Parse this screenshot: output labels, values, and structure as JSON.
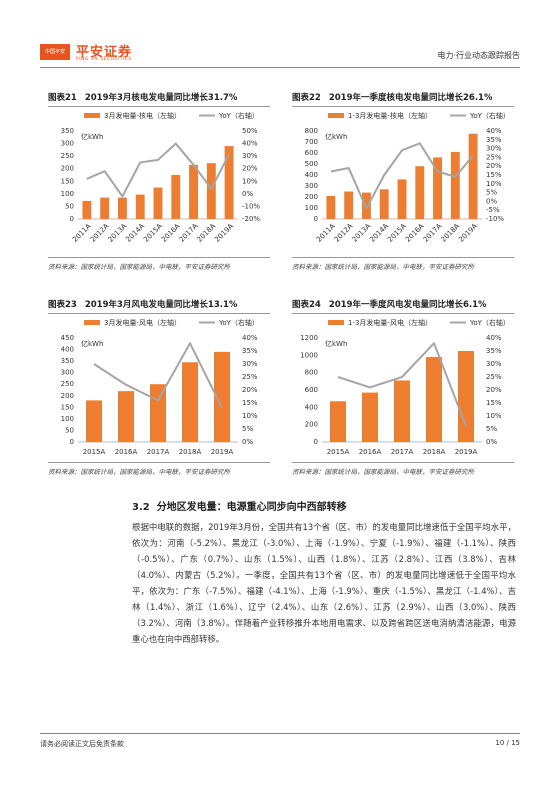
{
  "header": {
    "logo": "中国平安",
    "company": "平安证券",
    "company_en": "PING AN SECURITIES",
    "report_type": "电力·行业动态跟踪报告"
  },
  "chart_data": [
    {
      "type": "combo",
      "figure_label": "图表21",
      "title": "2019年3月核电发电量同比增长31.7%",
      "unit_label": "亿kWh",
      "categories": [
        "2011A",
        "2012A",
        "2013A",
        "2014A",
        "2015A",
        "2016A",
        "2017A",
        "2018A",
        "2019A"
      ],
      "series": [
        {
          "name": "3月发电量-核电（左轴）",
          "kind": "bar",
          "color": "#ed7d31",
          "values": [
            72,
            85,
            85,
            97,
            125,
            175,
            215,
            222,
            290
          ]
        },
        {
          "name": "YoY（右轴）",
          "kind": "line",
          "axis": "y2",
          "color": "#a5a5a5",
          "values": [
            12,
            18,
            -2,
            25,
            27,
            40,
            23,
            4,
            31.7
          ]
        }
      ],
      "ylim": [
        0,
        350
      ],
      "yticks": [
        0,
        50,
        100,
        150,
        200,
        250,
        300,
        350
      ],
      "y2lim": [
        -20,
        50
      ],
      "y2ticks": [
        {
          "value": -20,
          "label": "-20%"
        },
        {
          "value": -10,
          "label": "-10%"
        },
        {
          "value": 0,
          "label": "0%"
        },
        {
          "value": 10,
          "label": "10%"
        },
        {
          "value": 20,
          "label": "20%"
        },
        {
          "value": 30,
          "label": "30%"
        },
        {
          "value": 40,
          "label": "40%"
        },
        {
          "value": 50,
          "label": "50%"
        }
      ],
      "source": "资料来源：国家统计局，国家能源局，中电联，平安证券研究所"
    },
    {
      "type": "combo",
      "figure_label": "图表22",
      "title": "2019年一季度核电发电量同比增长26.1%",
      "unit_label": "亿kWh",
      "categories": [
        "2011A",
        "2012A",
        "2013A",
        "2014A",
        "2015A",
        "2016A",
        "2017A",
        "2018A",
        "2019A"
      ],
      "series": [
        {
          "name": "1-3月发电量-核电（左轴）",
          "kind": "bar",
          "color": "#ed7d31",
          "values": [
            210,
            250,
            240,
            270,
            360,
            480,
            560,
            610,
            775
          ]
        },
        {
          "name": "YoY（右轴）",
          "kind": "line",
          "axis": "y2",
          "color": "#a5a5a5",
          "values": [
            17,
            19,
            -4,
            15,
            29,
            33,
            17,
            14,
            26.1
          ]
        }
      ],
      "ylim": [
        0,
        800
      ],
      "yticks": [
        0,
        100,
        200,
        300,
        400,
        500,
        600,
        700,
        800
      ],
      "y2lim": [
        -10,
        40
      ],
      "y2ticks": [
        {
          "value": -10,
          "label": "-10%"
        },
        {
          "value": -5,
          "label": "-5%"
        },
        {
          "value": 0,
          "label": "0%"
        },
        {
          "value": 5,
          "label": "5%"
        },
        {
          "value": 10,
          "label": "10%"
        },
        {
          "value": 15,
          "label": "15%"
        },
        {
          "value": 20,
          "label": "20%"
        },
        {
          "value": 25,
          "label": "25%"
        },
        {
          "value": 30,
          "label": "30%"
        },
        {
          "value": 35,
          "label": "35%"
        },
        {
          "value": 40,
          "label": "40%"
        }
      ],
      "source": "资料来源：国家统计局，国家能源局，中电联，平安证券研究所"
    },
    {
      "type": "combo",
      "figure_label": "图表23",
      "title": "2019年3月风电发电量同比增长13.1%",
      "unit_label": "亿kWh",
      "categories": [
        "2015A",
        "2016A",
        "2017A",
        "2018A",
        "2019A"
      ],
      "series": [
        {
          "name": "3月发电量-风电（左轴）",
          "kind": "bar",
          "color": "#ed7d31",
          "values": [
            180,
            220,
            250,
            345,
            390
          ]
        },
        {
          "name": "YoY（右轴）",
          "kind": "line",
          "axis": "y2",
          "color": "#a5a5a5",
          "values": [
            30,
            22,
            16,
            38,
            13.1
          ]
        }
      ],
      "ylim": [
        0,
        450
      ],
      "yticks": [
        0,
        50,
        100,
        150,
        200,
        250,
        300,
        350,
        400,
        450
      ],
      "y2lim": [
        0,
        40
      ],
      "y2ticks": [
        {
          "value": 0,
          "label": "0%"
        },
        {
          "value": 5,
          "label": "5%"
        },
        {
          "value": 10,
          "label": "10%"
        },
        {
          "value": 15,
          "label": "15%"
        },
        {
          "value": 20,
          "label": "20%"
        },
        {
          "value": 25,
          "label": "25%"
        },
        {
          "value": 30,
          "label": "30%"
        },
        {
          "value": 35,
          "label": "35%"
        },
        {
          "value": 40,
          "label": "40%"
        }
      ],
      "source": "资料来源：国家统计局，国家能源局，中电联，平安证券研究所"
    },
    {
      "type": "combo",
      "figure_label": "图表24",
      "title": "2019年一季度风电发电量同比增长6.1%",
      "unit_label": "亿kWh",
      "categories": [
        "2015A",
        "2016A",
        "2017A",
        "2018A",
        "2019A"
      ],
      "series": [
        {
          "name": "1-3月发电量-风电（左轴）",
          "kind": "bar",
          "color": "#ed7d31",
          "values": [
            470,
            570,
            710,
            980,
            1050
          ]
        },
        {
          "name": "YoY（右轴）",
          "kind": "line",
          "axis": "y2",
          "color": "#a5a5a5",
          "values": [
            25,
            21,
            25,
            38,
            6.1
          ]
        }
      ],
      "ylim": [
        0,
        1200
      ],
      "yticks": [
        0,
        200,
        400,
        600,
        800,
        1000,
        1200
      ],
      "y2lim": [
        0,
        40
      ],
      "y2ticks": [
        {
          "value": 0,
          "label": "0%"
        },
        {
          "value": 5,
          "label": "5%"
        },
        {
          "value": 10,
          "label": "10%"
        },
        {
          "value": 15,
          "label": "15%"
        },
        {
          "value": 20,
          "label": "20%"
        },
        {
          "value": 25,
          "label": "25%"
        },
        {
          "value": 30,
          "label": "30%"
        },
        {
          "value": 35,
          "label": "35%"
        },
        {
          "value": 40,
          "label": "40%"
        }
      ],
      "source": "资料来源：国家统计局，国家能源局，中电联，平安证券研究所"
    }
  ],
  "section": {
    "number": "3.2",
    "title": "分地区发电量：电源重心同步向中西部转移"
  },
  "paragraph": "根据中电联的数据，2019年3月份，全国共有13个省（区、市）的发电量同比增速低于全国平均水平，依次为：河南（-5.2%）、黑龙江（-3.0%）、上海（-1.9%）、宁夏（-1.9%）、福建（-1.1%）、陕西（-0.5%）、广东（0.7%）、山东（1.5%）、山西（1.8%）、江苏（2.8%）、江西（3.8%）、吉林（4.0%）、内蒙古（5.2%）。一季度，全国共有13个省（区、市）的发电量同比增速低于全国平均水平，依次为：广东（-7.5%）、福建（-4.1%）、上海（-1.9%）、重庆（-1.5%）、黑龙江（-1.4%）、吉林（1.4%）、浙江（1.6%）、辽宁（2.4%）、山东（2.6%）、江苏（2.9%）、山西（3.0%）、陕西（3.2%）、河南（3.8%）。伴随着产业转移推升本地用电需求、以及跨省跨区送电消纳清洁能源，电源重心也在向中西部转移。",
  "footer": {
    "disclaimer": "请务必阅读正文后免责条款",
    "page": "10 / 15"
  }
}
